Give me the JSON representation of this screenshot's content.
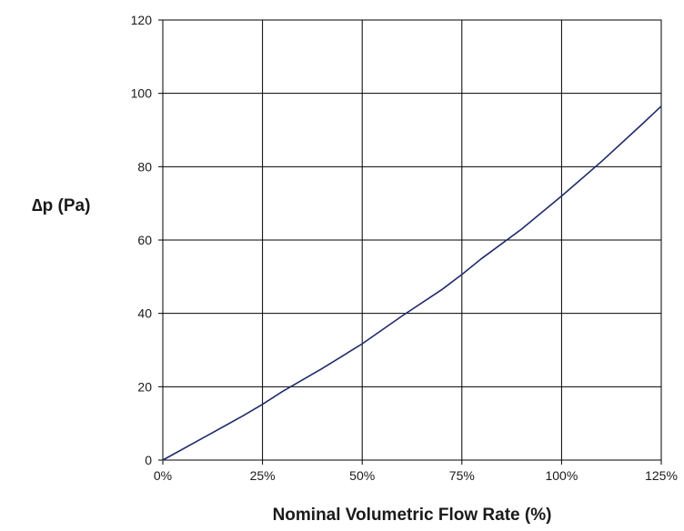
{
  "chart_data": {
    "type": "line",
    "title": "",
    "xlabel": "Nominal Volumetric Flow Rate (%)",
    "ylabel": "∆p (Pa)",
    "xlim": [
      0,
      125
    ],
    "ylim": [
      0,
      120
    ],
    "x_ticks": [
      "0%",
      "25%",
      "50%",
      "75%",
      "100%",
      "125%"
    ],
    "y_ticks": [
      "0",
      "20",
      "40",
      "60",
      "80",
      "100",
      "120"
    ],
    "grid": true,
    "legend": "none",
    "series": [
      {
        "color": "#1f2a6b",
        "x": [
          0,
          10,
          20,
          25,
          30,
          40,
          50,
          60,
          70,
          75,
          80,
          90,
          100,
          110,
          120,
          125
        ],
        "y": [
          0,
          6,
          12,
          15.2,
          18.7,
          25,
          31.7,
          39.3,
          46.5,
          50.6,
          55,
          63,
          72,
          81.4,
          91.4,
          96.5
        ]
      }
    ]
  }
}
